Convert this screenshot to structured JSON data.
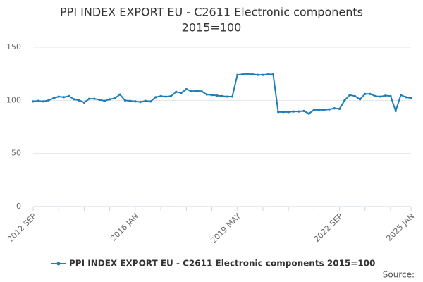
{
  "chart_data": {
    "type": "line",
    "title": "PPI INDEX EXPORT EU - C2611 Electronic components",
    "subtitle": "2015=100",
    "source": "Source:",
    "categories": [
      "2012 SEP",
      null,
      null,
      null,
      null,
      null,
      null,
      null,
      null,
      null,
      null,
      null,
      null,
      null,
      null,
      null,
      null,
      null,
      null,
      null,
      "2016 JAN",
      null,
      null,
      null,
      null,
      null,
      null,
      null,
      null,
      null,
      null,
      null,
      null,
      null,
      null,
      null,
      null,
      null,
      null,
      null,
      "2019 MAY",
      null,
      null,
      null,
      null,
      null,
      null,
      null,
      null,
      null,
      null,
      null,
      null,
      null,
      null,
      null,
      null,
      null,
      null,
      null,
      "2022 SEP",
      null,
      null,
      null,
      null,
      null,
      null,
      null,
      null,
      null,
      null,
      null,
      null,
      null,
      "2025 JAN"
    ],
    "series": [
      {
        "name": "PPI INDEX EXPORT EU - C2611 Electronic components 2015=100",
        "color": "#1f7db5",
        "values": [
          99,
          99.5,
          99,
          100,
          102,
          103.5,
          103,
          104,
          101,
          100,
          98,
          101.5,
          101.5,
          100.5,
          99.5,
          101,
          102,
          105.5,
          100,
          99.5,
          99,
          98.5,
          99.5,
          99,
          103,
          104,
          103.5,
          104,
          108,
          107,
          110.5,
          108.5,
          109,
          108.5,
          105.5,
          105,
          104.5,
          104,
          103.5,
          103.5,
          124,
          124.5,
          125,
          124.5,
          124,
          124,
          124.5,
          124.5,
          89,
          89,
          89,
          89.5,
          89.5,
          90,
          87.5,
          91,
          91,
          91,
          91.5,
          92.5,
          92,
          100,
          105,
          104,
          101,
          106,
          106,
          104,
          103.5,
          104.5,
          104,
          90,
          105,
          103,
          102
        ]
      }
    ],
    "ylim": [
      0,
      150
    ],
    "yticks": [
      0,
      50,
      100,
      150
    ],
    "grid": true
  }
}
